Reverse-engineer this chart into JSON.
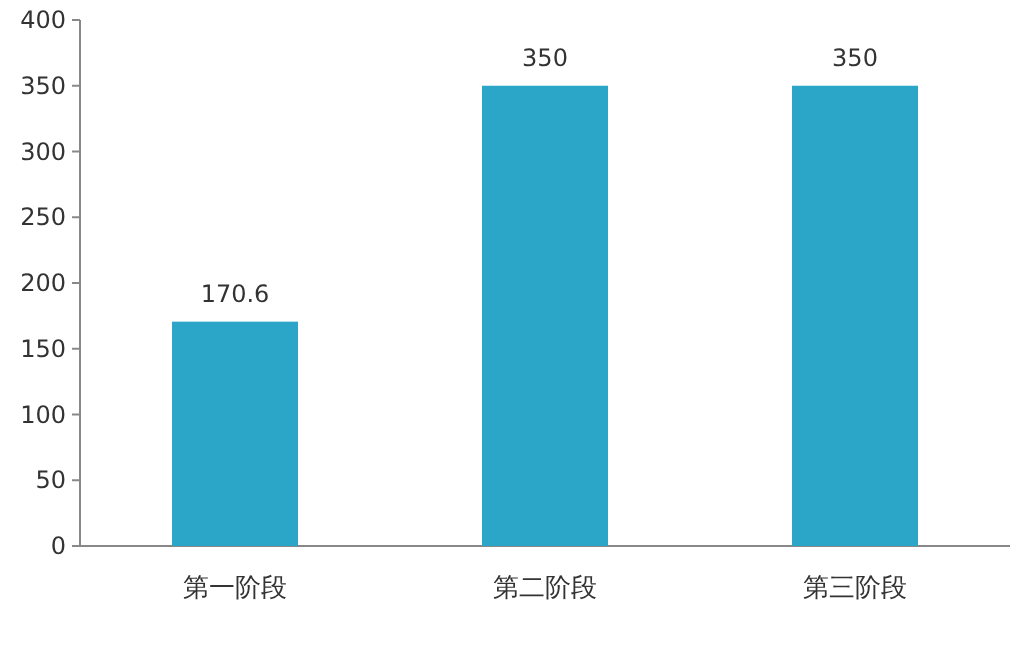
{
  "chart_data": {
    "type": "bar",
    "categories": [
      "第一阶段",
      "第二阶段",
      "第三阶段"
    ],
    "values": [
      170.6,
      350,
      350
    ],
    "color": "#2ba6c8",
    "ylim": [
      0,
      400
    ],
    "yticks": [
      0,
      50,
      100,
      150,
      200,
      250,
      300,
      350,
      400
    ],
    "data_labels": true,
    "grid": false
  }
}
